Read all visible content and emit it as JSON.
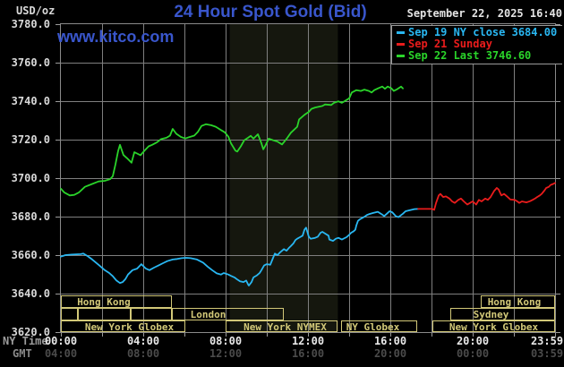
{
  "header": {
    "unit_label": "USD/oz",
    "title": "24 Hour Spot Gold (Bid)",
    "datetime": "September 22, 2025 16:40",
    "watermark": "www.kitco.com"
  },
  "legend": {
    "entries": [
      {
        "label": "Sep 19 NY close 3684.00",
        "color": "#29b7f2"
      },
      {
        "label": "Sep 21 Sunday",
        "color": "#ea1c1c"
      },
      {
        "label": "Sep 22 Last 3746.60",
        "color": "#2ad42a"
      }
    ]
  },
  "axes": {
    "y": {
      "labels": [
        "3780.0",
        "3760.0",
        "3740.0",
        "3720.0",
        "3700.0",
        "3680.0",
        "3660.0",
        "3640.0",
        "3620.0"
      ],
      "min": 3620,
      "max": 3780,
      "step": 20
    },
    "x": {
      "ny_label": "NY Time",
      "gmt_label": "GMT",
      "ticks": [
        {
          "t": 0,
          "ny": "00:00",
          "gmt": "04:00"
        },
        {
          "t": 4,
          "ny": "04:00",
          "gmt": "08:00"
        },
        {
          "t": 8,
          "ny": "08:00",
          "gmt": "12:00"
        },
        {
          "t": 12,
          "ny": "12:00",
          "gmt": "16:00"
        },
        {
          "t": 16,
          "ny": "16:00",
          "gmt": "20:00"
        },
        {
          "t": 20,
          "ny": "20:00",
          "gmt": "00:00"
        },
        {
          "t": 23.983,
          "ny": "23:59",
          "gmt": "03:59"
        }
      ],
      "minor_step_hours": 2
    }
  },
  "sessions": [
    {
      "row": 0,
      "t0": 0,
      "t1": 5.39,
      "label": "Hong Kong",
      "name": "hong-kong-early",
      "dx": -14
    },
    {
      "row": 0,
      "t0": 20.39,
      "t1": 24,
      "label": "Hong Kong",
      "name": "hong-kong-late",
      "dx": -4
    },
    {
      "row": 1,
      "t0": 0,
      "t1": 0.83,
      "label": "",
      "name": "unlabeled-1",
      "dx": 0
    },
    {
      "row": 1,
      "t0": 0.83,
      "t1": 3.39,
      "label": "",
      "name": "unlabeled-2",
      "dx": 0
    },
    {
      "row": 1,
      "t0": 3.39,
      "t1": 5.39,
      "label": "",
      "name": "unlabeled-3",
      "dx": 0
    },
    {
      "row": 1,
      "t0": 5.39,
      "t1": 10.83,
      "label": "London",
      "name": "london",
      "dx": -22
    },
    {
      "row": 1,
      "t0": 18.91,
      "t1": 24,
      "label": "Sydney",
      "name": "sydney",
      "dx": -13
    },
    {
      "row": 2,
      "t0": 0,
      "t1": 6.04,
      "label": "New York Globex",
      "name": "new-york-globex-early",
      "dx": 7
    },
    {
      "row": 2,
      "t0": 8.0,
      "t1": 13.43,
      "label": "New York NYMEX",
      "name": "new-york-nymex",
      "dx": 4
    },
    {
      "row": 2,
      "t0": 13.61,
      "t1": 17.3,
      "label": "NY Globex",
      "name": "ny-globex",
      "dx": -7
    },
    {
      "row": 2,
      "t0": 18.04,
      "t1": 24,
      "label": "New York Globex",
      "name": "new-york-globex-late",
      "dx": 0
    }
  ],
  "colors": {
    "background": "#000000",
    "grid": "#7f7f7f",
    "plot_border": "#8a8a8a",
    "title_blue": "#3956cc",
    "session_khaki": "#d2c878",
    "ny_tick_text": "#e8e8e8",
    "gmt_tick_text": "#4b4b4b"
  },
  "chart_data": {
    "type": "line",
    "title": "24 Hour Spot Gold (Bid)",
    "xlabel": "NY Time (hours)",
    "ylabel": "USD/oz",
    "xlim": [
      0,
      24
    ],
    "ylim": [
      3620,
      3780
    ],
    "grid": true,
    "legend_position": "top-right",
    "shaded_band": {
      "t0": 8.2,
      "t1": 13.45,
      "color": "#15170e"
    },
    "series": [
      {
        "name": "Sep 22 Last 3746.60",
        "color": "#2ad42a",
        "points": [
          [
            0.0,
            3694.5
          ],
          [
            0.17,
            3692.5
          ],
          [
            0.43,
            3691.0
          ],
          [
            0.65,
            3691.3
          ],
          [
            0.87,
            3692.5
          ],
          [
            1.17,
            3695.5
          ],
          [
            1.52,
            3697.0
          ],
          [
            1.83,
            3698.3
          ],
          [
            2.13,
            3698.6
          ],
          [
            2.39,
            3699.5
          ],
          [
            2.52,
            3701.0
          ],
          [
            2.65,
            3707.0
          ],
          [
            2.78,
            3714.0
          ],
          [
            2.87,
            3717.3
          ],
          [
            3.04,
            3712.0
          ],
          [
            3.22,
            3710.3
          ],
          [
            3.43,
            3708.0
          ],
          [
            3.57,
            3713.5
          ],
          [
            3.87,
            3711.9
          ],
          [
            4.04,
            3714.0
          ],
          [
            4.26,
            3716.5
          ],
          [
            4.43,
            3717.3
          ],
          [
            4.65,
            3718.5
          ],
          [
            4.87,
            3720.3
          ],
          [
            5.13,
            3721.0
          ],
          [
            5.3,
            3722.1
          ],
          [
            5.43,
            3725.6
          ],
          [
            5.61,
            3723.0
          ],
          [
            5.83,
            3721.4
          ],
          [
            6.04,
            3720.6
          ],
          [
            6.26,
            3721.4
          ],
          [
            6.48,
            3722.1
          ],
          [
            6.65,
            3724.0
          ],
          [
            6.83,
            3727.1
          ],
          [
            7.04,
            3728.0
          ],
          [
            7.3,
            3727.5
          ],
          [
            7.52,
            3726.7
          ],
          [
            7.74,
            3725.2
          ],
          [
            7.96,
            3723.8
          ],
          [
            8.13,
            3721.6
          ],
          [
            8.26,
            3718.1
          ],
          [
            8.48,
            3714.3
          ],
          [
            8.57,
            3713.8
          ],
          [
            8.74,
            3716.5
          ],
          [
            8.91,
            3719.7
          ],
          [
            9.09,
            3721.0
          ],
          [
            9.22,
            3722.0
          ],
          [
            9.35,
            3720.5
          ],
          [
            9.57,
            3722.8
          ],
          [
            9.74,
            3718.1
          ],
          [
            9.83,
            3715.0
          ],
          [
            9.96,
            3717.5
          ],
          [
            10.09,
            3720.5
          ],
          [
            10.3,
            3719.7
          ],
          [
            10.52,
            3719.0
          ],
          [
            10.74,
            3717.5
          ],
          [
            11.0,
            3721.0
          ],
          [
            11.17,
            3723.6
          ],
          [
            11.48,
            3726.7
          ],
          [
            11.57,
            3730.5
          ],
          [
            11.83,
            3732.9
          ],
          [
            12.04,
            3734.4
          ],
          [
            12.17,
            3736.0
          ],
          [
            12.35,
            3736.7
          ],
          [
            12.7,
            3737.5
          ],
          [
            12.83,
            3738.3
          ],
          [
            13.13,
            3738.0
          ],
          [
            13.26,
            3739.1
          ],
          [
            13.48,
            3739.9
          ],
          [
            13.65,
            3739.1
          ],
          [
            13.87,
            3740.6
          ],
          [
            14.0,
            3741.4
          ],
          [
            14.13,
            3744.5
          ],
          [
            14.35,
            3745.7
          ],
          [
            14.57,
            3745.3
          ],
          [
            14.74,
            3746.0
          ],
          [
            14.96,
            3745.3
          ],
          [
            15.09,
            3744.5
          ],
          [
            15.22,
            3745.7
          ],
          [
            15.43,
            3746.8
          ],
          [
            15.61,
            3747.6
          ],
          [
            15.74,
            3746.4
          ],
          [
            15.87,
            3747.6
          ],
          [
            16.04,
            3746.8
          ],
          [
            16.17,
            3745.3
          ],
          [
            16.3,
            3746.0
          ],
          [
            16.52,
            3747.6
          ],
          [
            16.61,
            3746.6
          ]
        ]
      },
      {
        "name": "Sep 19 NY close 3684.00",
        "color": "#29b7f2",
        "points": [
          [
            0.0,
            3659.2
          ],
          [
            0.22,
            3660.0
          ],
          [
            0.52,
            3660.3
          ],
          [
            0.96,
            3660.5
          ],
          [
            1.09,
            3660.8
          ],
          [
            1.3,
            3659.5
          ],
          [
            1.52,
            3657.7
          ],
          [
            1.83,
            3655.0
          ],
          [
            2.13,
            3652.2
          ],
          [
            2.35,
            3650.7
          ],
          [
            2.52,
            3649.0
          ],
          [
            2.7,
            3646.8
          ],
          [
            2.87,
            3645.5
          ],
          [
            3.0,
            3646.0
          ],
          [
            3.13,
            3647.5
          ],
          [
            3.26,
            3649.9
          ],
          [
            3.48,
            3652.2
          ],
          [
            3.7,
            3653.0
          ],
          [
            3.91,
            3655.3
          ],
          [
            4.13,
            3653.0
          ],
          [
            4.3,
            3652.2
          ],
          [
            4.52,
            3653.5
          ],
          [
            4.74,
            3654.6
          ],
          [
            4.96,
            3655.8
          ],
          [
            5.17,
            3656.9
          ],
          [
            5.43,
            3657.7
          ],
          [
            5.65,
            3658.0
          ],
          [
            5.87,
            3658.4
          ],
          [
            6.09,
            3658.6
          ],
          [
            6.3,
            3658.4
          ],
          [
            6.61,
            3657.7
          ],
          [
            6.91,
            3656.1
          ],
          [
            7.13,
            3654.0
          ],
          [
            7.35,
            3652.2
          ],
          [
            7.57,
            3650.5
          ],
          [
            7.78,
            3649.9
          ],
          [
            7.91,
            3650.7
          ],
          [
            8.13,
            3649.9
          ],
          [
            8.26,
            3649.2
          ],
          [
            8.43,
            3648.4
          ],
          [
            8.57,
            3647.3
          ],
          [
            8.7,
            3646.4
          ],
          [
            8.87,
            3646.0
          ],
          [
            9.0,
            3646.8
          ],
          [
            9.09,
            3644.8
          ],
          [
            9.13,
            3644.2
          ],
          [
            9.26,
            3646.0
          ],
          [
            9.35,
            3648.4
          ],
          [
            9.52,
            3649.5
          ],
          [
            9.65,
            3650.7
          ],
          [
            9.74,
            3652.2
          ],
          [
            9.87,
            3654.6
          ],
          [
            10.0,
            3655.3
          ],
          [
            10.17,
            3655.0
          ],
          [
            10.3,
            3658.4
          ],
          [
            10.39,
            3660.8
          ],
          [
            10.52,
            3660.0
          ],
          [
            10.65,
            3661.5
          ],
          [
            10.83,
            3663.1
          ],
          [
            10.96,
            3662.3
          ],
          [
            11.09,
            3663.9
          ],
          [
            11.17,
            3664.7
          ],
          [
            11.3,
            3666.2
          ],
          [
            11.39,
            3667.8
          ],
          [
            11.48,
            3668.5
          ],
          [
            11.61,
            3669.3
          ],
          [
            11.74,
            3670.1
          ],
          [
            11.83,
            3673.2
          ],
          [
            11.91,
            3674.3
          ],
          [
            11.96,
            3672.4
          ],
          [
            12.04,
            3669.6
          ],
          [
            12.13,
            3668.5
          ],
          [
            12.35,
            3669.0
          ],
          [
            12.48,
            3669.6
          ],
          [
            12.61,
            3671.6
          ],
          [
            12.7,
            3672.1
          ],
          [
            12.83,
            3671.2
          ],
          [
            13.0,
            3670.1
          ],
          [
            13.04,
            3668.1
          ],
          [
            13.22,
            3667.4
          ],
          [
            13.35,
            3668.5
          ],
          [
            13.48,
            3669.0
          ],
          [
            13.65,
            3668.1
          ],
          [
            13.87,
            3669.3
          ],
          [
            14.0,
            3670.5
          ],
          [
            14.09,
            3671.6
          ],
          [
            14.22,
            3672.4
          ],
          [
            14.3,
            3673.2
          ],
          [
            14.35,
            3675.5
          ],
          [
            14.43,
            3677.8
          ],
          [
            14.52,
            3678.6
          ],
          [
            14.65,
            3679.4
          ],
          [
            14.78,
            3680.2
          ],
          [
            14.87,
            3680.9
          ],
          [
            15.0,
            3681.4
          ],
          [
            15.17,
            3681.9
          ],
          [
            15.39,
            3682.5
          ],
          [
            15.61,
            3681.0
          ],
          [
            15.7,
            3680.3
          ],
          [
            15.83,
            3681.5
          ],
          [
            15.96,
            3682.8
          ],
          [
            16.09,
            3682.3
          ],
          [
            16.26,
            3680.3
          ],
          [
            16.39,
            3679.7
          ],
          [
            16.61,
            3681.5
          ],
          [
            16.74,
            3682.8
          ],
          [
            16.96,
            3683.4
          ],
          [
            17.17,
            3683.9
          ],
          [
            17.35,
            3684.0
          ]
        ]
      },
      {
        "name": "Sep 21 Sunday",
        "color": "#ea1c1c",
        "points": [
          [
            17.35,
            3684.0
          ],
          [
            18.04,
            3684.0
          ],
          [
            18.13,
            3683.5
          ],
          [
            18.22,
            3687.1
          ],
          [
            18.35,
            3691.0
          ],
          [
            18.43,
            3691.8
          ],
          [
            18.57,
            3690.2
          ],
          [
            18.7,
            3690.5
          ],
          [
            18.87,
            3689.4
          ],
          [
            19.0,
            3687.9
          ],
          [
            19.13,
            3687.1
          ],
          [
            19.3,
            3688.7
          ],
          [
            19.43,
            3689.4
          ],
          [
            19.57,
            3687.9
          ],
          [
            19.74,
            3686.3
          ],
          [
            19.87,
            3687.1
          ],
          [
            20.0,
            3687.9
          ],
          [
            20.17,
            3686.3
          ],
          [
            20.3,
            3688.7
          ],
          [
            20.43,
            3687.9
          ],
          [
            20.61,
            3689.4
          ],
          [
            20.74,
            3688.7
          ],
          [
            20.87,
            3690.2
          ],
          [
            21.04,
            3693.3
          ],
          [
            21.17,
            3694.9
          ],
          [
            21.26,
            3694.1
          ],
          [
            21.39,
            3691.0
          ],
          [
            21.52,
            3691.8
          ],
          [
            21.7,
            3690.2
          ],
          [
            21.83,
            3688.9
          ],
          [
            22.04,
            3688.7
          ],
          [
            22.17,
            3687.9
          ],
          [
            22.26,
            3687.1
          ],
          [
            22.39,
            3687.9
          ],
          [
            22.61,
            3687.4
          ],
          [
            22.78,
            3688.0
          ],
          [
            22.91,
            3688.7
          ],
          [
            23.04,
            3689.5
          ],
          [
            23.13,
            3690.2
          ],
          [
            23.26,
            3691.0
          ],
          [
            23.35,
            3691.8
          ],
          [
            23.48,
            3693.5
          ],
          [
            23.57,
            3694.9
          ],
          [
            23.7,
            3695.5
          ],
          [
            23.78,
            3696.4
          ],
          [
            23.91,
            3697.0
          ],
          [
            24.0,
            3697.5
          ]
        ]
      }
    ]
  }
}
